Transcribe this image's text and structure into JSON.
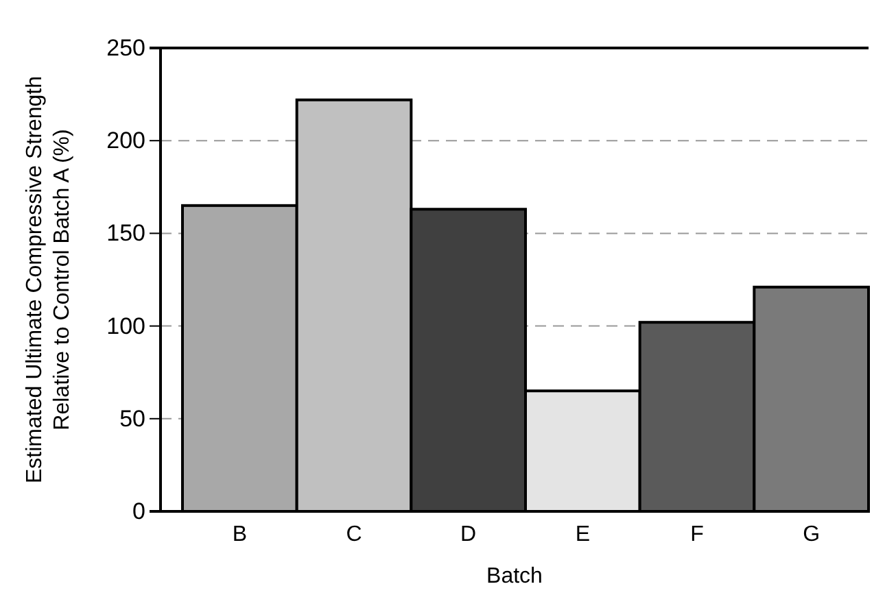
{
  "chart_data": {
    "type": "bar",
    "xlabel": "Batch",
    "ylabel": "Estimated Ultimate Compressive Strength\nRelative to Control Batch A (%)",
    "categories": [
      "B",
      "C",
      "D",
      "E",
      "F",
      "G"
    ],
    "values": [
      165,
      222,
      163,
      65,
      102,
      121
    ],
    "colors": [
      "#a8a8a8",
      "#c0c0c0",
      "#404040",
      "#e4e4e4",
      "#5a5a5a",
      "#7a7a7a"
    ],
    "ylim": [
      0,
      250
    ],
    "yticks": [
      0,
      50,
      100,
      150,
      200,
      250
    ],
    "grid": "y"
  }
}
